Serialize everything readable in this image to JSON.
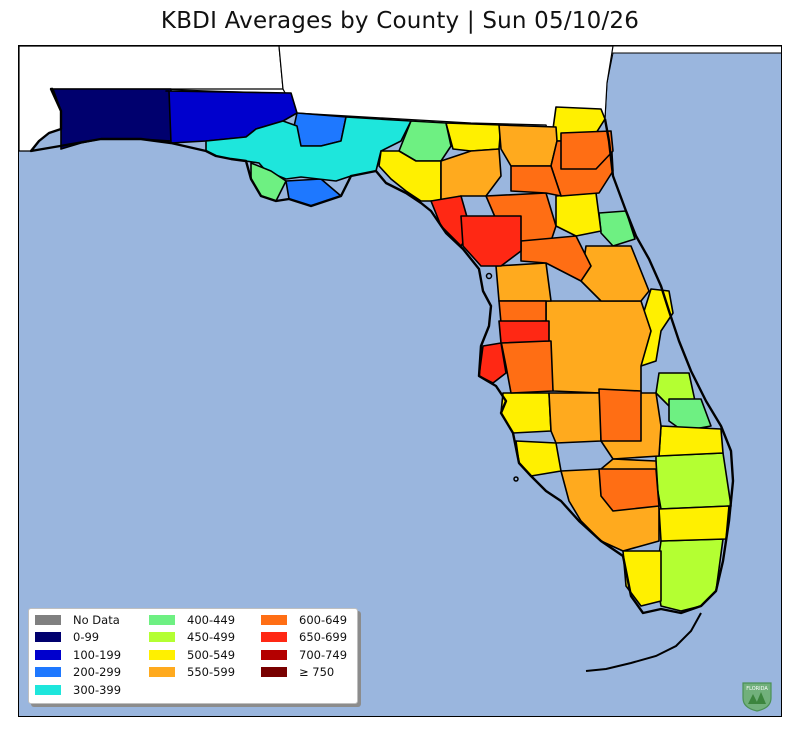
{
  "title": "KBDI Averages by County | Sun 05/10/26",
  "colors": {
    "water": "#9ab6de",
    "land_outside": "#ffffff",
    "border": "#000000"
  },
  "legend": {
    "items": [
      {
        "label": "No Data",
        "color": "#808080"
      },
      {
        "label": "0-99",
        "color": "#00006e"
      },
      {
        "label": "100-199",
        "color": "#0000cd"
      },
      {
        "label": "200-299",
        "color": "#1e78ff"
      },
      {
        "label": "300-399",
        "color": "#1ee6dc"
      },
      {
        "label": "400-449",
        "color": "#6ef082"
      },
      {
        "label": "450-499",
        "color": "#b4ff32"
      },
      {
        "label": "500-549",
        "color": "#fff000"
      },
      {
        "label": "550-599",
        "color": "#ffaa1e"
      },
      {
        "label": "600-649",
        "color": "#ff6e14"
      },
      {
        "label": "650-699",
        "color": "#ff2814"
      },
      {
        "label": "700-749",
        "color": "#b40000"
      },
      {
        "label": "≥ 750",
        "color": "#780000"
      }
    ]
  },
  "logo": {
    "text": "FLORIDA",
    "icon": "florida-forest-service-shield-icon",
    "color": "#5aa05a"
  }
}
